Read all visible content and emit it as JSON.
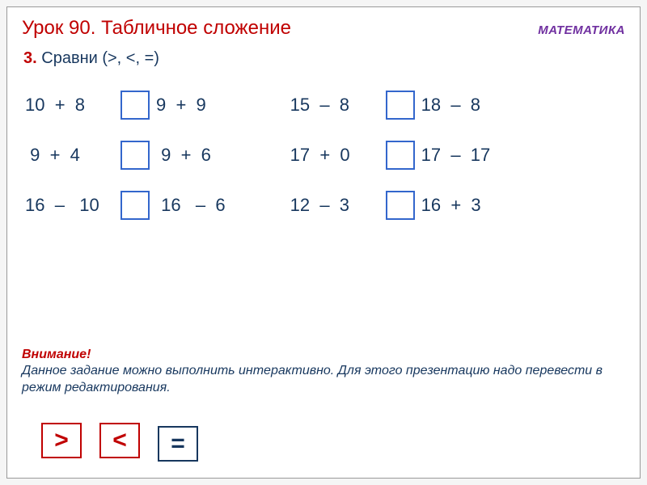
{
  "header": {
    "lesson_title": "Урок 90. Табличное сложение",
    "subject": "МАТЕМАТИКА"
  },
  "task": {
    "number": "3.",
    "text": "Сравни (>,  <,  =)"
  },
  "colors": {
    "title": "#c00000",
    "subject": "#7030a0",
    "body_text": "#17375e",
    "input_border": "#3366cc",
    "symbol_red": "#c00000",
    "symbol_blue": "#17375e",
    "background": "#ffffff"
  },
  "problems": {
    "left": [
      {
        "l": "10  +  8",
        "r": "9  +  9"
      },
      {
        "l": " 9  +  4",
        "r": " 9  +  6"
      },
      {
        "l": "16  –   10",
        "r": " 16   –  6"
      }
    ],
    "right": [
      {
        "l": "15  –  8",
        "r": "18  –  8"
      },
      {
        "l": "17  +  0",
        "r": "17  –  17"
      },
      {
        "l": "12  –  3",
        "r": "16  +  3"
      }
    ]
  },
  "note": {
    "title": "Внимание!",
    "text": "Данное задание можно выполнить интерактивно. Для этого презентацию надо перевести в режим редактирования."
  },
  "symbols": {
    "gt": ">",
    "lt": "<",
    "eq": "="
  }
}
